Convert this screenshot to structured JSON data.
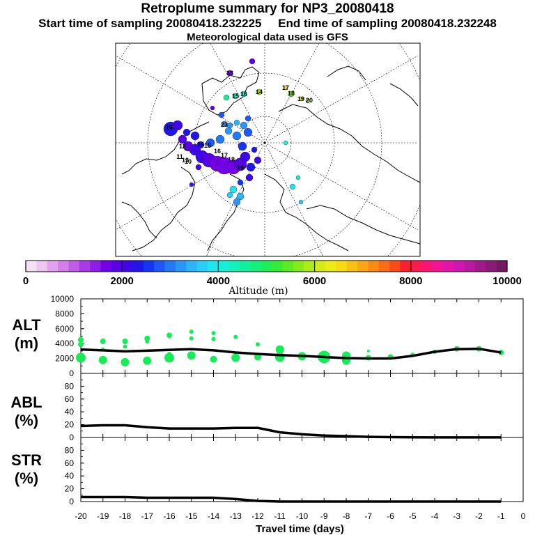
{
  "header": {
    "title": "Retroplume summary for NP3_20080418",
    "start_label": "Start time of sampling 20080418.232225",
    "end_label": "End time of sampling 20080418.232248",
    "met_label": "Meteorological data used is GFS"
  },
  "map": {
    "day_labels": [
      "16",
      "17",
      "18",
      "19",
      "20",
      "23",
      "13",
      "14",
      "15",
      "16",
      "12",
      "13",
      "10",
      "11",
      "14",
      "15",
      "16",
      "17",
      "18",
      "19"
    ]
  },
  "colorbar": {
    "ticks": [
      "0",
      "2000",
      "4000",
      "6000",
      "8000",
      "10000"
    ],
    "tick_values": [
      0,
      2000,
      4000,
      6000,
      8000,
      10000
    ],
    "label": "Altitude (m)",
    "colors": [
      "#f6e0f6",
      "#eec6f0",
      "#e3a3ec",
      "#d57ee8",
      "#c05ce6",
      "#a93ae6",
      "#8f1de8",
      "#7400e6",
      "#5a00e8",
      "#3d07e8",
      "#2115ea",
      "#1536f0",
      "#1d58f4",
      "#2378f6",
      "#2997f8",
      "#2bb5f8",
      "#27d0f6",
      "#1fe6ee",
      "#17efd8",
      "#13f0bd",
      "#12f09e",
      "#15ef7c",
      "#1bee58",
      "#34ec35",
      "#5ceb22",
      "#86ea18",
      "#aeea16",
      "#d3ec15",
      "#ecec14",
      "#f6da14",
      "#f8c212",
      "#f9a712",
      "#f98b14",
      "#fa6c16",
      "#fb4a18",
      "#fb2030",
      "#fb1a4e",
      "#fa1473",
      "#f41393",
      "#e414aa",
      "#cf16b0",
      "#b9189f",
      "#a21a8a",
      "#8a1a76",
      "#711a62"
    ]
  },
  "panels": {
    "alt_label": "ALT",
    "alt_unit": "(m)",
    "abl_label": "ABL",
    "abl_unit": "(%)",
    "str_label": "STR",
    "str_unit": "(%)",
    "alt_ticks": [
      "0",
      "2000",
      "4000",
      "6000",
      "8000",
      "10000"
    ],
    "pct_ticks": [
      "0",
      "20",
      "40",
      "60",
      "80"
    ]
  },
  "chart_data": {
    "type": "line",
    "x_axis": {
      "label": "Travel time (days)",
      "range": [
        -20,
        0
      ],
      "ticks": [
        "-20",
        "-19",
        "-18",
        "-17",
        "-16",
        "-15",
        "-14",
        "-13",
        "-12",
        "-11",
        "-10",
        "-9",
        "-8",
        "-7",
        "-6",
        "-5",
        "-4",
        "-3",
        "-2",
        "-1",
        "0"
      ]
    },
    "alt": {
      "ylabel": "ALT (m)",
      "ylim": [
        0,
        10000
      ],
      "line": {
        "x": [
          -20,
          -19,
          -18,
          -17,
          -16,
          -15,
          -14,
          -13,
          -12,
          -11,
          -10,
          -9,
          -8,
          -7,
          -6,
          -5,
          -4,
          -3,
          -2,
          -1
        ],
        "y": [
          3200,
          3100,
          2950,
          3050,
          3150,
          3250,
          3100,
          2800,
          2600,
          2450,
          2350,
          2200,
          2050,
          2000,
          2000,
          2350,
          2900,
          3250,
          3300,
          2800
        ]
      },
      "dots": {
        "x": [
          -20,
          -20,
          -20,
          -19,
          -19,
          -19,
          -18,
          -18,
          -18,
          -17,
          -17,
          -17,
          -16,
          -16,
          -16,
          -15,
          -15,
          -15,
          -14,
          -14,
          -14,
          -13,
          -13,
          -12,
          -12,
          -11,
          -11,
          -10,
          -9,
          -8,
          -8,
          -7,
          -7,
          -6,
          -5,
          -4,
          -3,
          -2,
          -1
        ],
        "y": [
          4500,
          3900,
          2100,
          4300,
          3200,
          1800,
          4300,
          3600,
          1500,
          4700,
          4300,
          1700,
          5100,
          2600,
          2100,
          5600,
          4700,
          2400,
          5400,
          4600,
          1900,
          4900,
          2100,
          3900,
          2200,
          3200,
          2200,
          2300,
          2200,
          2400,
          1700,
          3000,
          2100,
          2200,
          2500,
          2900,
          3300,
          3300,
          2800
        ],
        "r": [
          4,
          4,
          7,
          4,
          3,
          6,
          4,
          3,
          6,
          4,
          3,
          6,
          4,
          3,
          7,
          3,
          3,
          6,
          3,
          3,
          5,
          3,
          6,
          3,
          5,
          6,
          7,
          6,
          9,
          6,
          6,
          2,
          4,
          4,
          3,
          3,
          4,
          4,
          4
        ]
      }
    },
    "abl": {
      "ylabel": "ABL (%)",
      "ylim": [
        0,
        100
      ],
      "x": [
        -20,
        -19,
        -18,
        -17,
        -16,
        -15,
        -14,
        -13,
        -12,
        -11,
        -10,
        -9,
        -8,
        -7,
        -6,
        -5,
        -4,
        -3,
        -2,
        -1
      ],
      "y": [
        18,
        19,
        19,
        16,
        14,
        14,
        14,
        15,
        15,
        8,
        5,
        3,
        2,
        1,
        0.5,
        0.3,
        0.2,
        0.2,
        0.2,
        0.2
      ]
    },
    "str": {
      "ylabel": "STR (%)",
      "ylim": [
        0,
        100
      ],
      "x": [
        -20,
        -19,
        -18,
        -17,
        -16,
        -15,
        -14,
        -13,
        -12,
        -11,
        -10,
        -9,
        -8,
        -7,
        -6,
        -5,
        -4,
        -3,
        -2,
        -1
      ],
      "y": [
        7,
        7,
        7,
        6,
        6,
        6,
        6,
        4,
        1,
        0,
        0,
        0,
        0,
        0,
        0,
        0,
        0,
        0,
        0,
        0
      ]
    }
  }
}
